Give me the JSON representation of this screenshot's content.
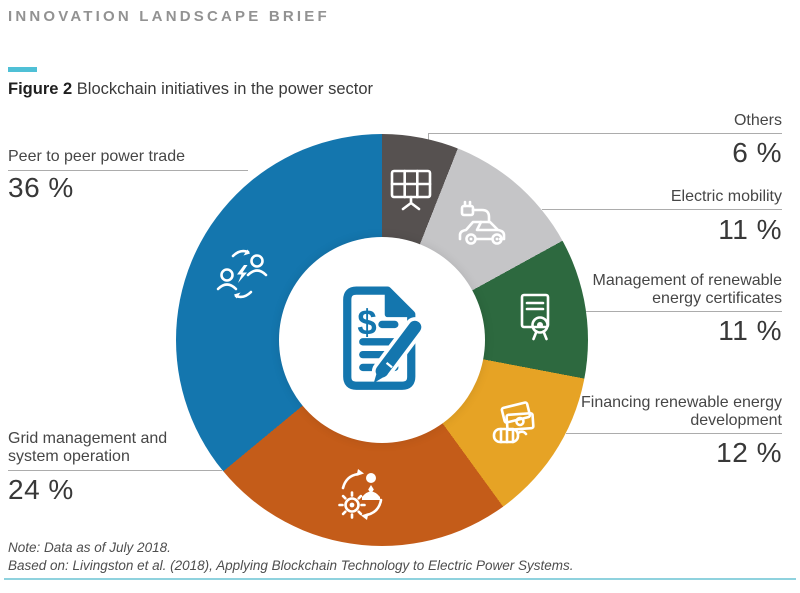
{
  "header": {
    "kicker": "INNOVATION LANDSCAPE BRIEF",
    "figure_label": "Figure 2",
    "figure_title": "Blockchain initiatives in the power sector"
  },
  "footer": {
    "note_line1": "Note: Data as of July 2018.",
    "note_line2": "Based on: Livingston et al. (2018), Applying Blockchain Technology to Electric Power Systems."
  },
  "colors": {
    "accent_teal": "#4fc0d6",
    "bottom_rule_teal": "#8fd2de",
    "leader_line": "#acacac",
    "center_icon_blue": "#1476ae"
  },
  "chart_data": {
    "type": "pie",
    "variant": "donut",
    "title": "Blockchain initiatives in the power sector",
    "start_angle_deg": 0,
    "direction": "clockwise",
    "center_icon": "document-with-dollar-and-pen",
    "slices": [
      {
        "label": "Others",
        "value": 6,
        "pct_label": "6 %",
        "color": "#565150",
        "icon": "solar-panel"
      },
      {
        "label": "Electric mobility",
        "value": 11,
        "pct_label": "11 %",
        "color": "#c5c5c7",
        "icon": "electric-car"
      },
      {
        "label": "Management of renewable energy certificates",
        "value": 11,
        "pct_label": "11 %",
        "color": "#2d693f",
        "icon": "certificate"
      },
      {
        "label": "Financing renewable energy development",
        "value": 12,
        "pct_label": "12 %",
        "color": "#e6a325",
        "icon": "money-in-hand"
      },
      {
        "label": "Grid management and system operation",
        "value": 24,
        "pct_label": "24 %",
        "color": "#c45c19",
        "icon": "gear-person-cycle"
      },
      {
        "label": "Peer to peer power trade",
        "value": 36,
        "pct_label": "36 %",
        "color": "#1476ae",
        "icon": "people-energy-exchange"
      }
    ]
  }
}
